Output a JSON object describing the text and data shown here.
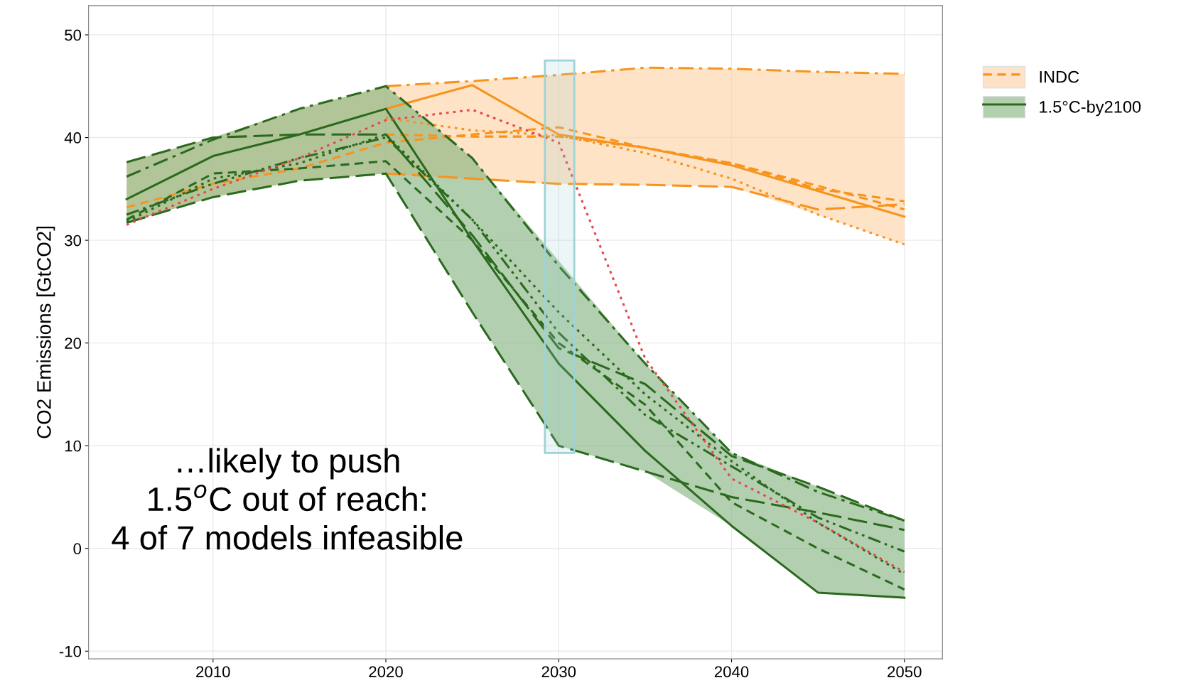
{
  "chart_data": {
    "type": "line",
    "ylabel": "CO2 Emissions [GtCO2]",
    "x": [
      2005,
      2010,
      2015,
      2020,
      2025,
      2030,
      2035,
      2040,
      2045,
      2050
    ],
    "xlim": [
      2002.8,
      2052.2
    ],
    "xticks": [
      2010,
      2020,
      2030,
      2040,
      2050
    ],
    "ylim": [
      -10.75,
      52.85
    ],
    "yticks": [
      -10,
      0,
      10,
      20,
      30,
      40,
      50
    ],
    "grid": true,
    "legend": "right",
    "marker": "none",
    "series": [
      {
        "color": "#f7941d",
        "line_style": "solid",
        "values": [
          null,
          null,
          null,
          42.8,
          45.1,
          40.3,
          39.0,
          37.3,
          34.8,
          32.3
        ]
      },
      {
        "color": "#f7941d",
        "line_style": "dashdot",
        "values": [
          null,
          null,
          null,
          45.0,
          45.5,
          46.1,
          46.8,
          46.7,
          46.4,
          46.2
        ]
      },
      {
        "color": "#f7941d",
        "line_style": "longdash",
        "values": [
          null,
          null,
          null,
          36.5,
          36.0,
          35.5,
          35.4,
          35.2,
          33.0,
          33.5
        ]
      },
      {
        "name": "INDC",
        "color": "#f7941d",
        "line_style": "dashed",
        "values": [
          33.2,
          35.5,
          37.0,
          39.5,
          40.3,
          41.0,
          39.0,
          37.5,
          35.0,
          33.8
        ],
        "lower": [
          31.7,
          34.2,
          35.8,
          36.5,
          36.0,
          35.5,
          35.4,
          35.2,
          32.5,
          29.6
        ],
        "upper": [
          37.6,
          40.0,
          42.8,
          45.0,
          45.5,
          46.1,
          46.8,
          46.7,
          46.4,
          46.2
        ]
      },
      {
        "color": "#f7941d",
        "line_style": "dotted",
        "values": [
          null,
          null,
          null,
          41.9,
          40.7,
          40.2,
          38.5,
          36.0,
          32.5,
          29.6
        ]
      },
      {
        "color": "#f7941d",
        "line_style": "dashed",
        "values": [
          null,
          null,
          null,
          40.3,
          40.1,
          40.1,
          39.0,
          37.5,
          35.3,
          33.0
        ]
      },
      {
        "name": "1.5°C-by2100",
        "color": "#2b6a1e",
        "line_style": "solid",
        "values": [
          34.0,
          38.2,
          40.3,
          42.8,
          30.0,
          18.0,
          9.5,
          2.2,
          -4.3,
          -4.8
        ],
        "lower": [
          31.7,
          34.2,
          35.8,
          36.5,
          23.0,
          10.0,
          7.5,
          2.2,
          -4.3,
          -4.8
        ],
        "upper": [
          37.6,
          40.0,
          42.8,
          45.0,
          38.0,
          28.0,
          18.0,
          9.3,
          6.0,
          2.7
        ]
      },
      {
        "color": "#2b6a1e",
        "line_style": "dashdot",
        "values": [
          36.2,
          39.8,
          42.8,
          45.0,
          38.0,
          27.5,
          18.0,
          9.3,
          5.5,
          2.7
        ]
      },
      {
        "color": "#2b6a1e",
        "line_style": "longdash",
        "values": [
          31.7,
          34.2,
          35.8,
          36.5,
          23.0,
          10.0,
          7.5,
          5.0,
          3.5,
          1.8
        ]
      },
      {
        "color": "#2b6a1e",
        "line_style": "dashed",
        "values": [
          32.0,
          36.5,
          37.0,
          37.7,
          30.0,
          20.0,
          14.0,
          4.5,
          0.0,
          -4.0
        ]
      },
      {
        "color": "#2b6a1e",
        "line_style": "dotted",
        "values": [
          31.8,
          36.0,
          37.5,
          40.3,
          32.0,
          23.0,
          15.0,
          8.5,
          2.5,
          -2.5
        ]
      },
      {
        "color": "#2b6a1e",
        "line_style": "longdash",
        "values": [
          37.6,
          40.0,
          40.3,
          40.3,
          30.5,
          19.5,
          16.0,
          9.0,
          6.0,
          2.7
        ]
      },
      {
        "color": "#2b6a1e",
        "line_style": "dashdotdot",
        "values": [
          32.5,
          35.5,
          38.0,
          40.0,
          32.0,
          21.0,
          13.0,
          8.0,
          3.0,
          -0.3
        ]
      },
      {
        "color": "#e8474b",
        "line_style": "dotted",
        "values": [
          31.5,
          35.0,
          38.0,
          41.7,
          42.7,
          39.5,
          18.5,
          6.8,
          2.5,
          -2.3
        ]
      }
    ],
    "annotations": [
      {
        "text": "…likely to push\n1.5$^{o}$C out of reach:\n4 of 7 models infeasible"
      }
    ]
  }
}
